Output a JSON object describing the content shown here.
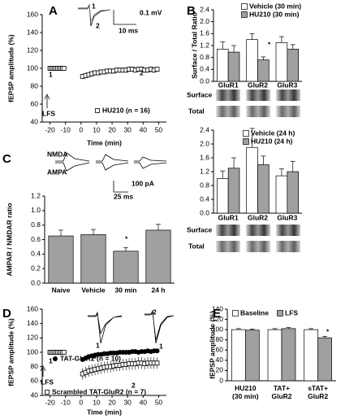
{
  "chart_data": [
    {
      "type": "scatter",
      "label": "A",
      "x_label": "Time (min)",
      "y_label": "fEPSP amplitude (%)",
      "xlim": [
        -25,
        55
      ],
      "xticks": [
        -20,
        -10,
        0,
        10,
        20,
        30,
        40,
        50
      ],
      "ylim": [
        40,
        160
      ],
      "yticks": [
        40,
        60,
        80,
        100,
        120,
        140,
        160
      ],
      "series": [
        {
          "name": "HU210 (n = 16)",
          "color": "#000000",
          "marker": "square",
          "filled": false,
          "x": [
            -20,
            -19,
            -18,
            -17,
            -16,
            -15,
            -14,
            -13,
            -12,
            -11,
            1,
            3,
            5,
            7,
            9,
            11,
            13,
            15,
            17,
            19,
            21,
            23,
            25,
            27,
            29,
            31,
            33,
            35,
            37,
            39,
            41,
            43,
            45,
            47,
            49
          ],
          "values": [
            100,
            100,
            100,
            100,
            100,
            100,
            100,
            100,
            100,
            100,
            91,
            92,
            93,
            94,
            95,
            95,
            96,
            96,
            97,
            97,
            97,
            98,
            98,
            98,
            98,
            99,
            99,
            98,
            99,
            99,
            98,
            98,
            99,
            98,
            99
          ],
          "errors": [
            1,
            1,
            1,
            1,
            1,
            1,
            1,
            1,
            1,
            1,
            3,
            3,
            3,
            3,
            3,
            3,
            3,
            3,
            3,
            3,
            3,
            3,
            3,
            3,
            3,
            3,
            3,
            3,
            3,
            3,
            3,
            3,
            3,
            3,
            3
          ]
        }
      ],
      "annotations": [
        "1",
        "2",
        "LFS",
        "0.1 mV",
        "10 ms",
        "1",
        "2"
      ]
    },
    {
      "type": "bar",
      "label": "B",
      "y_label": "Surface / Total Ratio",
      "categories": [
        "GluR1",
        "GluR2",
        "GluR3"
      ],
      "ylim": [
        0,
        2.4
      ],
      "yticks": [
        {
          "value": 0,
          "label": "0.0"
        },
        0.4,
        0.8,
        1.2,
        1.6,
        {
          "value": 2,
          "label": "2.0"
        },
        2.4
      ],
      "legend": "upper right",
      "series": [
        {
          "name": "Vehicle (30 min)",
          "color": "#ffffff",
          "values": [
            1.08,
            1.4,
            1.3
          ],
          "errors": [
            0.25,
            0.2,
            0.2
          ]
        },
        {
          "name": "HU210 (30 min)",
          "color": "#a0a0a0",
          "values": [
            0.98,
            0.72,
            1.08
          ],
          "errors": [
            0.22,
            0.1,
            0.15
          ]
        }
      ],
      "annotations": [
        "*",
        "Surface",
        "Total"
      ]
    },
    {
      "type": "bar",
      "categories": [
        "GluR1",
        "GluR2",
        "GluR3"
      ],
      "ylim": [
        0,
        2.4
      ],
      "yticks": [
        {
          "value": 0,
          "label": "0.0"
        },
        0.4,
        0.8,
        1.2,
        1.6,
        {
          "value": 2,
          "label": "2.0"
        },
        2.4
      ],
      "legend": "upper right",
      "series": [
        {
          "name": "Vehicle (24 h)",
          "color": "#ffffff",
          "values": [
            1.0,
            1.9,
            1.08
          ],
          "errors": [
            0.22,
            0.55,
            0.2
          ]
        },
        {
          "name": "HU210  (24 h)",
          "color": "#a0a0a0",
          "values": [
            1.3,
            1.4,
            1.2
          ],
          "errors": [
            0.3,
            0.25,
            0.3
          ]
        }
      ],
      "annotations": [
        "Surface",
        "Total"
      ]
    },
    {
      "type": "bar",
      "label": "C",
      "y_label": "AMPAR / NMDAR ratio",
      "categories": [
        "Naive",
        "Vehicle",
        "30 min",
        "24 h"
      ],
      "ylim": [
        0,
        1.2
      ],
      "yticks": [
        {
          "value": 0,
          "label": "0.0"
        },
        0.2,
        0.4,
        0.6,
        0.8,
        {
          "value": 1,
          "label": "1.0"
        },
        1.2
      ],
      "series": [
        {
          "color": "#a0a0a0",
          "values": [
            0.65,
            0.67,
            0.44,
            0.73
          ],
          "errors": [
            0.08,
            0.07,
            0.05,
            0.08
          ]
        }
      ],
      "annotations": [
        "NMDA",
        "AMPA",
        "100 pA",
        "25 ms",
        "*"
      ]
    },
    {
      "type": "scatter",
      "label": "D",
      "x_label": "Time (min)",
      "y_label": "fEPSP amplitude (%)",
      "xlim": [
        -25,
        55
      ],
      "xticks": [
        -20,
        -10,
        0,
        10,
        20,
        30,
        40,
        50
      ],
      "ylim": [
        40,
        160
      ],
      "yticks": [
        40,
        60,
        80,
        100,
        120,
        140,
        160
      ],
      "series": [
        {
          "name": "TAT-GluR2  (n = 10)",
          "color": "#000000",
          "marker": "circle",
          "filled": true,
          "x": [
            -20,
            -19,
            -18,
            -17,
            -16,
            -15,
            -14,
            -13,
            -12,
            -11,
            1,
            3,
            5,
            7,
            9,
            11,
            13,
            15,
            17,
            19,
            21,
            23,
            25,
            27,
            29,
            31,
            33,
            35,
            37,
            39,
            41,
            43,
            45,
            47,
            49
          ],
          "values": [
            100,
            100,
            100,
            100,
            100,
            100,
            100,
            100,
            100,
            100,
            90,
            92,
            94,
            95,
            96,
            97,
            97,
            98,
            98,
            99,
            99,
            99,
            100,
            100,
            100,
            100,
            101,
            101,
            100,
            101,
            101,
            102,
            101,
            102,
            102
          ],
          "errors": [
            1,
            1,
            1,
            1,
            1,
            1,
            1,
            1,
            1,
            1,
            3,
            3,
            3,
            3,
            3,
            3,
            3,
            3,
            3,
            3,
            3,
            3,
            3,
            3,
            3,
            3,
            3,
            3,
            3,
            3,
            3,
            3,
            3,
            3,
            3
          ]
        },
        {
          "name": "Scrambled TAT-GluR2 (n = 7)",
          "color": "#000000",
          "marker": "square",
          "filled": false,
          "x": [
            -20,
            -19,
            -18,
            -17,
            -16,
            -15,
            -14,
            -13,
            -12,
            -11,
            1,
            3,
            5,
            7,
            9,
            11,
            13,
            15,
            17,
            19,
            21,
            23,
            25,
            27,
            29,
            31,
            33,
            35,
            37,
            39,
            41,
            43,
            45,
            47,
            49
          ],
          "values": [
            100,
            100,
            100,
            100,
            100,
            100,
            100,
            100,
            100,
            100,
            70,
            72,
            74,
            75,
            76,
            77,
            78,
            79,
            80,
            80,
            81,
            82,
            82,
            83,
            83,
            84,
            84,
            84,
            85,
            85,
            84,
            85,
            85,
            85,
            85
          ],
          "errors": [
            2,
            2,
            2,
            2,
            2,
            2,
            2,
            2,
            2,
            2,
            8,
            8,
            8,
            8,
            8,
            8,
            8,
            8,
            8,
            8,
            8,
            8,
            8,
            8,
            8,
            8,
            8,
            8,
            8,
            8,
            8,
            8,
            8,
            8,
            8
          ]
        }
      ],
      "annotations": [
        "1",
        "2",
        "1",
        "2",
        "1",
        "LFS",
        "2"
      ]
    },
    {
      "type": "bar",
      "label": "E",
      "y_label": "fEPSP amplitude (%)",
      "categories": [
        "HU210\n(30 min)",
        "TAT+\nGluR2",
        "sTAT+\nGluR2"
      ],
      "ylim": [
        0,
        140
      ],
      "yticks": [
        0,
        20,
        40,
        60,
        80,
        100,
        120,
        140
      ],
      "legend": "upper center",
      "series": [
        {
          "name": "Baseline",
          "color": "#ffffff",
          "values": [
            100,
            100,
            100
          ],
          "errors": [
            2,
            2,
            2
          ]
        },
        {
          "name": "LFS",
          "color": "#a0a0a0",
          "values": [
            99,
            102,
            84
          ],
          "errors": [
            2,
            2,
            3
          ]
        }
      ],
      "annotations": [
        "*"
      ]
    }
  ]
}
